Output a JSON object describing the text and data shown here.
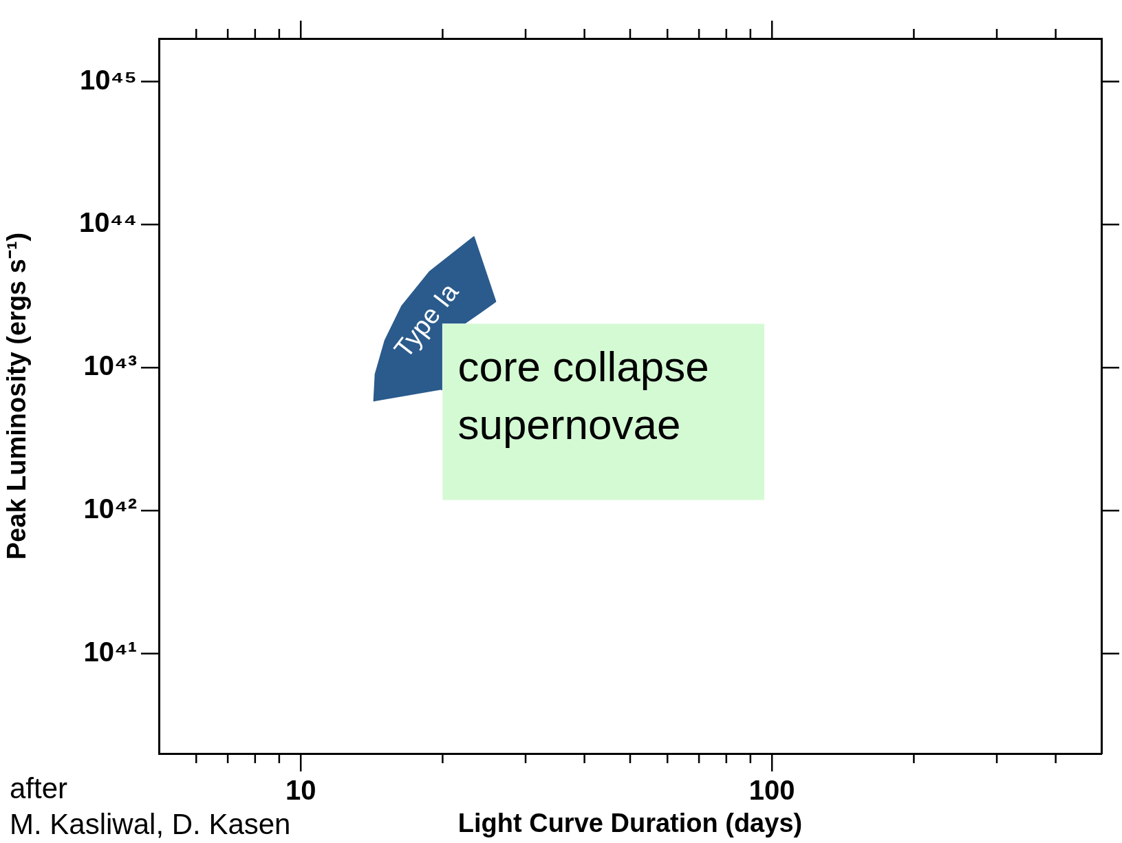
{
  "chart_data": {
    "type": "area",
    "xlabel": "Light Curve Duration (days)",
    "ylabel": "Peak Luminosity (ergs s⁻¹)",
    "log": "xy",
    "legend": false,
    "grid": false,
    "xlim": [
      5,
      500
    ],
    "ylim": [
      2e+40,
      2e+45
    ],
    "xticks": [
      {
        "value": 6,
        "label": null
      },
      {
        "value": 7,
        "label": null
      },
      {
        "value": 8,
        "label": null
      },
      {
        "value": 9,
        "label": null
      },
      10,
      {
        "value": 20,
        "label": null
      },
      {
        "value": 30,
        "label": null
      },
      {
        "value": 40,
        "label": null
      },
      {
        "value": 50,
        "label": null
      },
      {
        "value": 60,
        "label": null
      },
      {
        "value": 70,
        "label": null
      },
      {
        "value": 80,
        "label": null
      },
      {
        "value": 90,
        "label": null
      },
      100,
      {
        "value": 200,
        "label": null
      },
      {
        "value": 300,
        "label": null
      },
      {
        "value": 400,
        "label": null
      }
    ],
    "yticks": [
      {
        "value": 1e+41,
        "label": "10⁴¹"
      },
      {
        "value": 1e+42,
        "label": "10⁴²"
      },
      {
        "value": 1e+43,
        "label": "10⁴³"
      },
      {
        "value": 1e+44,
        "label": "10⁴⁴"
      },
      {
        "value": 1e+45,
        "label": "10⁴⁵"
      }
    ],
    "series": [
      {
        "name": "Type Ia",
        "color": "#2a5b8c",
        "x": [
          14.3,
          14.4,
          15.1,
          16.4,
          18.8,
          23.3,
          25.9,
          23.9,
          22.3,
          19.9,
          19.9
        ],
        "values": [
          5.8e+42,
          9e+42,
          1.55e+43,
          2.7e+43,
          4.7e+43,
          8.2e+43,
          2.9e+43,
          2.4e+43,
          2.05e+43,
          2.05e+43,
          7e+42
        ]
      },
      {
        "name": "core collapse supernovae",
        "color": "#d4fad4",
        "x": [
          20,
          96,
          96,
          20
        ],
        "values": [
          2e+43,
          2e+43,
          1.2e+42,
          1.2e+42
        ]
      }
    ],
    "annotations": [
      "after\nM. Kasliwal, D. Kasen"
    ]
  }
}
